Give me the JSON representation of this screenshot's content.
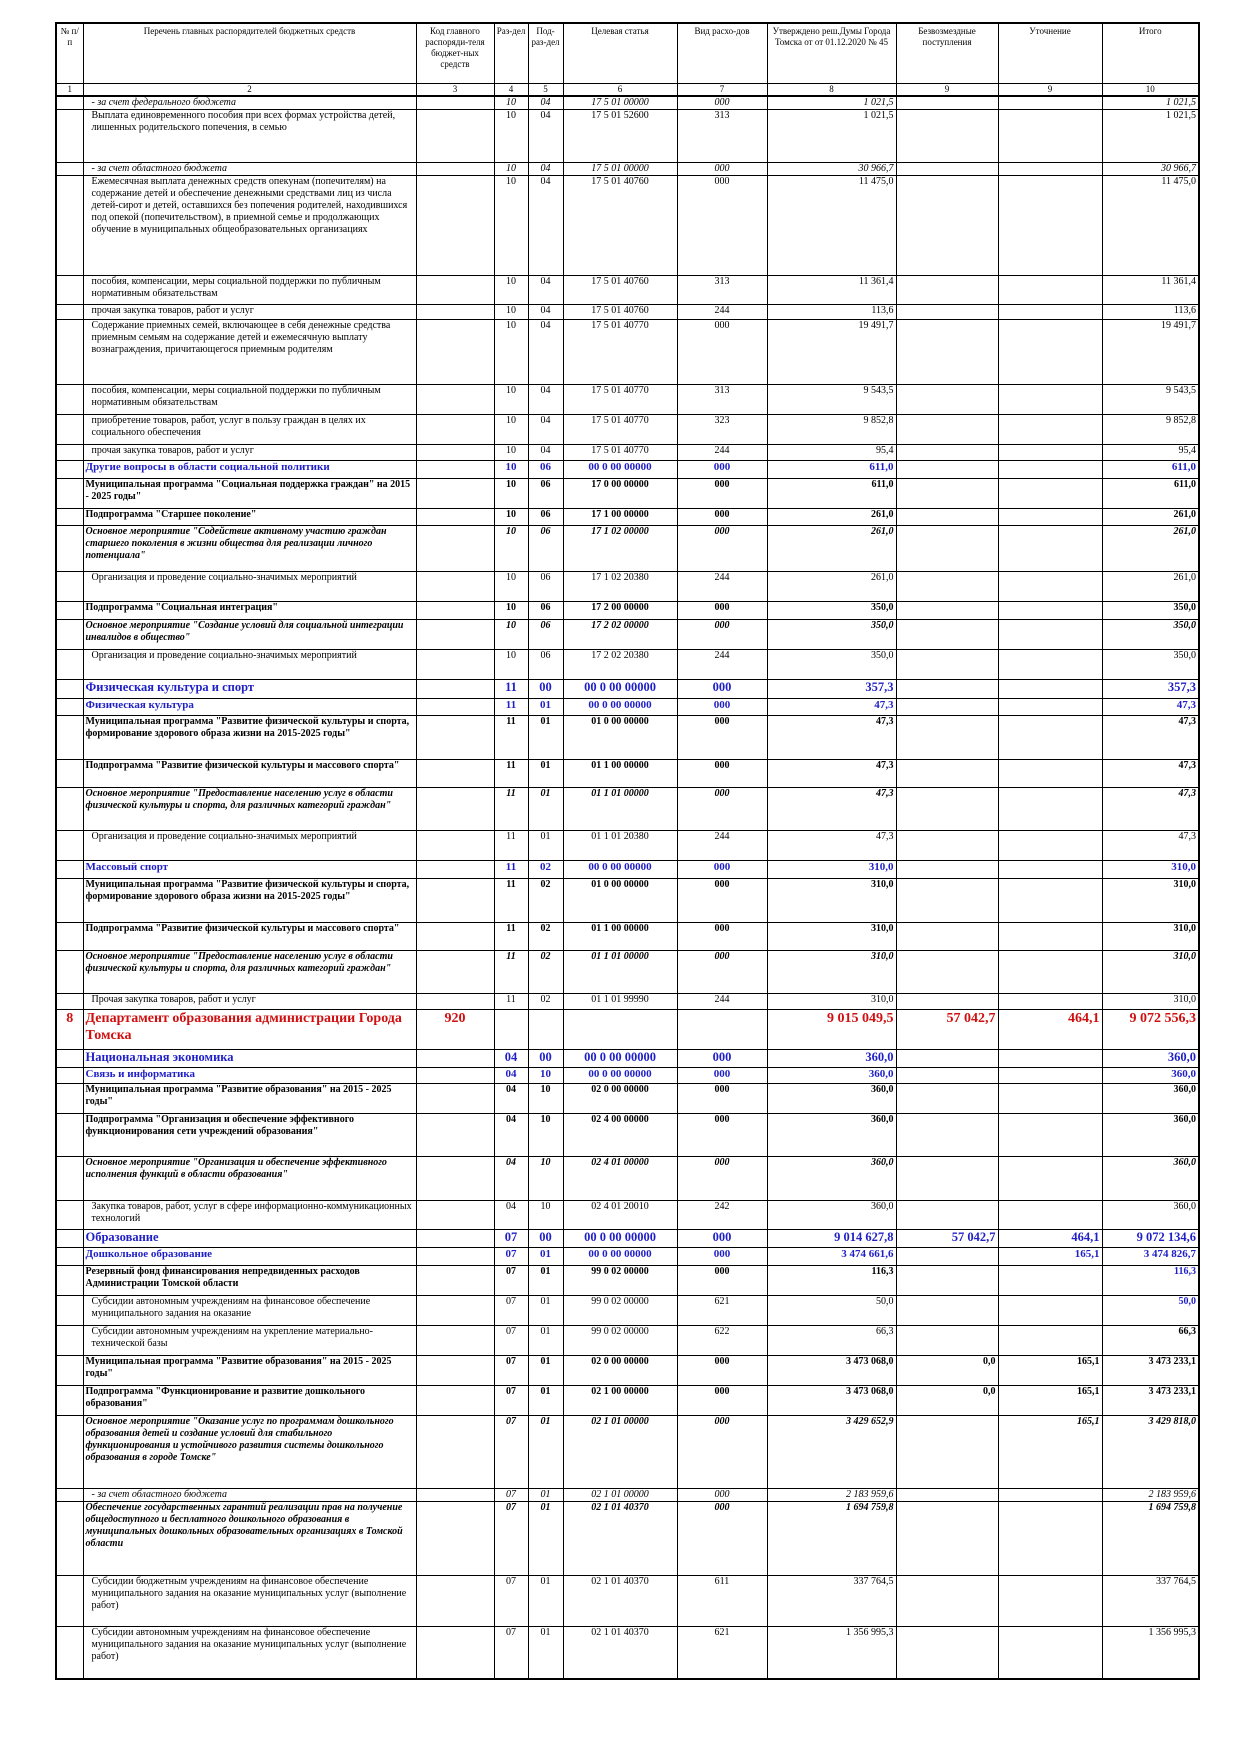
{
  "table": {
    "header": [
      "№ п/п",
      "Перечень главных распорядителей бюджетных средств",
      "Код главного распоряди-теля бюджет-ных средств",
      "Раз-дел",
      "Под-раз-дел",
      "Целевая статья",
      "Вид расхо-дов",
      "Утверждено реш.Думы Города Томска от от 01.12.2020 № 45",
      "Безвозмездные поступления",
      "Уточнение",
      "Итого"
    ],
    "column_numbers": [
      "1",
      "2",
      "3",
      "4",
      "5",
      "6",
      "7",
      "8",
      "9",
      "9",
      "10"
    ],
    "rows": [
      [
        null,
        "- за счет федерального бюджета",
        null,
        "10",
        "04",
        "17 5 01 00000",
        "000",
        "1 021,5",
        null,
        null,
        "1 021,5"
      ],
      [
        null,
        "Выплата единовременного пособия при всех формах устройства детей, лишенных родительского попечения, в семью",
        null,
        "10",
        "04",
        "17 5 01 52600",
        "313",
        "1 021,5",
        null,
        null,
        "1 021,5"
      ],
      [
        null,
        "- за счет областного бюджета",
        null,
        "10",
        "04",
        "17 5 01 00000",
        "000",
        "30 966,7",
        null,
        null,
        "30 966,7"
      ],
      [
        null,
        "Ежемесячная выплата денежных средств опекунам (попечителям) на содержание детей и обеспечение денежными средствами лиц из числа детей-сирот и детей, оставшихся без попечения родителей, находившихся под опекой (попечительством), в приемной семье и продолжающих обучение в муниципальных общеобразовательных организациях",
        null,
        "10",
        "04",
        "17 5 01 40760",
        "000",
        "11 475,0",
        null,
        null,
        "11 475,0"
      ],
      [
        null,
        "пособия, компенсации, меры социальной поддержки по публичным нормативным обязательствам",
        null,
        "10",
        "04",
        "17 5 01 40760",
        "313",
        "11 361,4",
        null,
        null,
        "11 361,4"
      ],
      [
        null,
        "прочая закупка товаров, работ и услуг",
        null,
        "10",
        "04",
        "17 5 01 40760",
        "244",
        "113,6",
        null,
        null,
        "113,6"
      ],
      [
        null,
        "Содержание приемных семей, включающее в себя денежные средства приемным семьям на содержание детей и ежемесячную выплату вознаграждения, причитающегося приемным родителям",
        null,
        "10",
        "04",
        "17 5 01 40770",
        "000",
        "19 491,7",
        null,
        null,
        "19 491,7"
      ],
      [
        null,
        "пособия, компенсации, меры социальной поддержки по публичным нормативным обязательствам",
        null,
        "10",
        "04",
        "17 5 01 40770",
        "313",
        "9 543,5",
        null,
        null,
        "9 543,5"
      ],
      [
        null,
        "приобретение товаров, работ, услуг в пользу граждан в целях их социального обеспечения",
        null,
        "10",
        "04",
        "17 5 01 40770",
        "323",
        "9 852,8",
        null,
        null,
        "9 852,8"
      ],
      [
        null,
        "прочая закупка товаров, работ и услуг",
        null,
        "10",
        "04",
        "17 5 01 40770",
        "244",
        "95,4",
        null,
        null,
        "95,4"
      ],
      [
        null,
        "Другие вопросы в области социальной политики",
        null,
        "10",
        "06",
        "00 0 00 00000",
        "000",
        "611,0",
        null,
        null,
        "611,0"
      ],
      [
        null,
        "Муниципальная программа \"Социальная поддержка граждан\" на 2015 - 2025 годы\"",
        null,
        "10",
        "06",
        "17 0 00 00000",
        "000",
        "611,0",
        null,
        null,
        "611,0"
      ],
      [
        null,
        "Подпрограмма \"Старшее поколение\"",
        null,
        "10",
        "06",
        "17 1 00 00000",
        "000",
        "261,0",
        null,
        null,
        "261,0"
      ],
      [
        null,
        "Основное мероприятие \"Содействие активному участию граждан старшего поколения в жизни общества для реализации личного потенциала\"",
        null,
        "10",
        "06",
        "17 1 02 00000",
        "000",
        "261,0",
        null,
        null,
        "261,0"
      ],
      [
        null,
        "Организация и проведение социально-значимых мероприятий",
        null,
        "10",
        "06",
        "17 1 02 20380",
        "244",
        "261,0",
        null,
        null,
        "261,0"
      ],
      [
        null,
        "Подпрограмма \"Социальная интеграция\"",
        null,
        "10",
        "06",
        "17 2 00 00000",
        "000",
        "350,0",
        null,
        null,
        "350,0"
      ],
      [
        null,
        "Основное мероприятие \"Создание условий для социальной интеграции инвалидов в общество\"",
        null,
        "10",
        "06",
        "17 2 02 00000",
        "000",
        "350,0",
        null,
        null,
        "350,0"
      ],
      [
        null,
        "Организация и проведение социально-значимых мероприятий",
        null,
        "10",
        "06",
        "17 2 02 20380",
        "244",
        "350,0",
        null,
        null,
        "350,0"
      ],
      [
        null,
        "Физическая культура и спорт",
        null,
        "11",
        "00",
        "00 0 00 00000",
        "000",
        "357,3",
        null,
        null,
        "357,3"
      ],
      [
        null,
        "Физическая культура",
        null,
        "11",
        "01",
        "00 0 00 00000",
        "000",
        "47,3",
        null,
        null,
        "47,3"
      ],
      [
        null,
        "Муниципальная программа \"Развитие физической культуры и спорта, формирование здорового образа жизни на 2015-2025 годы\"",
        null,
        "11",
        "01",
        "01 0 00 00000",
        "000",
        "47,3",
        null,
        null,
        "47,3"
      ],
      [
        null,
        "Подпрограмма \"Развитие физической культуры и массового спорта\"",
        null,
        "11",
        "01",
        "01 1 00 00000",
        "000",
        "47,3",
        null,
        null,
        "47,3"
      ],
      [
        null,
        "Основное мероприятие \"Предоставление населению услуг в области физической культуры и спорта, для различных категорий граждан\"",
        null,
        "11",
        "01",
        "01 1 01 00000",
        "000",
        "47,3",
        null,
        null,
        "47,3"
      ],
      [
        null,
        "Организация и проведение социально-значимых мероприятий",
        null,
        "11",
        "01",
        "01 1 01 20380",
        "244",
        "47,3",
        null,
        null,
        "47,3"
      ],
      [
        null,
        "Массовый спорт",
        null,
        "11",
        "02",
        "00 0 00 00000",
        "000",
        "310,0",
        null,
        null,
        "310,0"
      ],
      [
        null,
        "Муниципальная программа \"Развитие физической культуры и спорта, формирование здорового образа жизни на 2015-2025 годы\"",
        null,
        "11",
        "02",
        "01 0 00 00000",
        "000",
        "310,0",
        null,
        null,
        "310,0"
      ],
      [
        null,
        "Подпрограмма \"Развитие физической культуры и массового спорта\"",
        null,
        "11",
        "02",
        "01 1 00 00000",
        "000",
        "310,0",
        null,
        null,
        "310,0"
      ],
      [
        null,
        "Основное мероприятие \"Предоставление населению услуг в области физической культуры и спорта, для различных категорий граждан\"",
        null,
        "11",
        "02",
        "01 1 01 00000",
        "000",
        "310,0",
        null,
        null,
        "310,0"
      ],
      [
        null,
        "Прочая закупка товаров, работ и услуг",
        null,
        "11",
        "02",
        "01 1 01 99990",
        "244",
        "310,0",
        null,
        null,
        "310,0"
      ],
      [
        "8",
        "Департамент образования администрации Города Томска",
        "920",
        null,
        null,
        null,
        null,
        "9 015 049,5",
        "57 042,7",
        "464,1",
        "9 072 556,3"
      ],
      [
        null,
        "Национальная экономика",
        null,
        "04",
        "00",
        "00 0 00 00000",
        "000",
        "360,0",
        null,
        null,
        "360,0"
      ],
      [
        null,
        "Связь и информатика",
        null,
        "04",
        "10",
        "00 0 00 00000",
        "000",
        "360,0",
        null,
        null,
        "360,0"
      ],
      [
        null,
        "Муниципальная программа \"Развитие образования\" на 2015 - 2025 годы\"",
        null,
        "04",
        "10",
        "02 0 00 00000",
        "000",
        "360,0",
        null,
        null,
        "360,0"
      ],
      [
        null,
        "Подпрограмма \"Организация и обеспечение эффективного функционирования сети учреждений образования\"",
        null,
        "04",
        "10",
        "02 4 00 00000",
        "000",
        "360,0",
        null,
        null,
        "360,0"
      ],
      [
        null,
        "Основное мероприятие \"Организация и обеспечение эффективного исполнения функций в области образования\"",
        null,
        "04",
        "10",
        "02 4 01 00000",
        "000",
        "360,0",
        null,
        null,
        "360,0"
      ],
      [
        null,
        "Закупка товаров, работ, услуг в сфере информационно-коммуникационных технологий",
        null,
        "04",
        "10",
        "02 4 01 20010",
        "242",
        "360,0",
        null,
        null,
        "360,0"
      ],
      [
        null,
        "Образование",
        null,
        "07",
        "00",
        "00 0 00 00000",
        "000",
        "9 014 627,8",
        "57 042,7",
        "464,1",
        "9 072 134,6"
      ],
      [
        null,
        "Дошкольное образование",
        null,
        "07",
        "01",
        "00 0 00 00000",
        "000",
        "3 474 661,6",
        null,
        "165,1",
        "3 474 826,7"
      ],
      [
        null,
        "Резервный фонд финансирования непредвиденных расходов Администрации Томской области",
        null,
        "07",
        "01",
        "99 0 02 00000",
        "000",
        "116,3",
        null,
        null,
        "116,3"
      ],
      [
        null,
        "Субсидии автономным учреждениям на финансовое обеспечение муниципального задания на оказание",
        null,
        "07",
        "01",
        "99 0 02 00000",
        "621",
        "50,0",
        null,
        null,
        "50,0"
      ],
      [
        null,
        "Субсидии автономным учреждениям на укрепление материально-технической базы",
        null,
        "07",
        "01",
        "99 0 02 00000",
        "622",
        "66,3",
        null,
        null,
        "66,3"
      ],
      [
        null,
        "Муниципальная программа \"Развитие образования\" на 2015 - 2025 годы\"",
        null,
        "07",
        "01",
        "02 0 00 00000",
        "000",
        "3 473 068,0",
        "0,0",
        "165,1",
        "3 473 233,1"
      ],
      [
        null,
        "Подпрограмма \"Функционирование и развитие дошкольного образования\"",
        null,
        "07",
        "01",
        "02 1 00 00000",
        "000",
        "3 473 068,0",
        "0,0",
        "165,1",
        "3 473 233,1"
      ],
      [
        null,
        "Основное мероприятие \"Оказание услуг по программам дошкольного образования детей и создание условий для стабильного функционирования и устойчивого развития системы дошкольного образования в городе Томске\"",
        null,
        "07",
        "01",
        "02 1 01 00000",
        "000",
        "3 429 652,9",
        null,
        "165,1",
        "3 429 818,0"
      ],
      [
        null,
        "- за счет областного бюджета",
        null,
        "07",
        "01",
        "02 1 01 00000",
        "000",
        "2 183 959,6",
        null,
        null,
        "2 183 959,6"
      ],
      [
        null,
        "Обеспечение государственных гарантий реализации прав на получение общедоступного и бесплатного дошкольного образования в муниципальных дошкольных образовательных организациях в Томской области",
        null,
        "07",
        "01",
        "02 1 01 40370",
        "000",
        "1 694 759,8",
        null,
        null,
        "1 694 759,8"
      ],
      [
        null,
        "Субсидии бюджетным учреждениям на финансовое обеспечение муниципального задания на оказание муниципальных услуг (выполнение работ)",
        null,
        "07",
        "01",
        "02 1 01 40370",
        "611",
        "337 764,5",
        null,
        null,
        "337 764,5"
      ],
      [
        null,
        "Субсидии автономным учреждениям на финансовое обеспечение муниципального задания на оказание муниципальных услуг (выполнение работ)",
        null,
        "07",
        "01",
        "02 1 01 40370",
        "621",
        "1 356 995,3",
        null,
        null,
        "1 356 995,3"
      ]
    ]
  }
}
